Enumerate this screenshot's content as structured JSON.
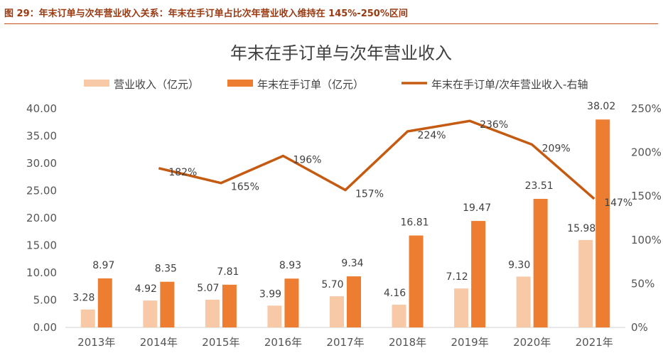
{
  "figure_caption": "图 29：年末订单与次年营业收入关系：年末在手订单占比次年营业收入维持在 145%-250%区间",
  "colors": {
    "revenue": "#f8c9a6",
    "orders": "#ed7d31",
    "ratio": "#c55a11",
    "caption": "#9a3a12"
  },
  "chart_data": {
    "type": "bar",
    "title": "年末在手订单与次年营业收入",
    "categories": [
      "2013年",
      "2014年",
      "2015年",
      "2016年",
      "2017年",
      "2018年",
      "2019年",
      "2020年",
      "2021年"
    ],
    "series": [
      {
        "name": "营业收入（亿元）",
        "type": "bar",
        "values": [
          3.28,
          4.92,
          5.07,
          3.99,
          5.7,
          4.16,
          7.12,
          9.3,
          15.98
        ],
        "labels": [
          "3.28",
          "4.92",
          "5.07",
          "3.99",
          "5.70",
          "4.16",
          "7.12",
          "9.30",
          "15.98"
        ]
      },
      {
        "name": "年末在手订单（亿元）",
        "type": "bar",
        "values": [
          8.97,
          8.35,
          7.81,
          8.93,
          9.34,
          16.81,
          19.47,
          23.51,
          38.02
        ],
        "labels": [
          "8.97",
          "8.35",
          "7.81",
          "8.93",
          "9.34",
          "16.81",
          "19.47",
          "23.51",
          "38.02"
        ]
      },
      {
        "name": "年末在手订单/次年营业收入-右轴",
        "type": "line",
        "axis": "right",
        "values": [
          null,
          182,
          165,
          196,
          157,
          224,
          236,
          209,
          147
        ],
        "labels": [
          "",
          "182%",
          "165%",
          "196%",
          "157%",
          "224%",
          "236%",
          "209%",
          "147%"
        ]
      }
    ],
    "y_left": {
      "ylim": [
        0,
        40
      ],
      "ticks": [
        "0.00",
        "5.00",
        "10.00",
        "15.00",
        "20.00",
        "25.00",
        "30.00",
        "35.00",
        "40.00"
      ]
    },
    "y_right": {
      "ylim": [
        0,
        250
      ],
      "ticks": [
        "0%",
        "50%",
        "100%",
        "150%",
        "200%",
        "250%"
      ]
    },
    "grid": false,
    "legend_position": "top"
  }
}
